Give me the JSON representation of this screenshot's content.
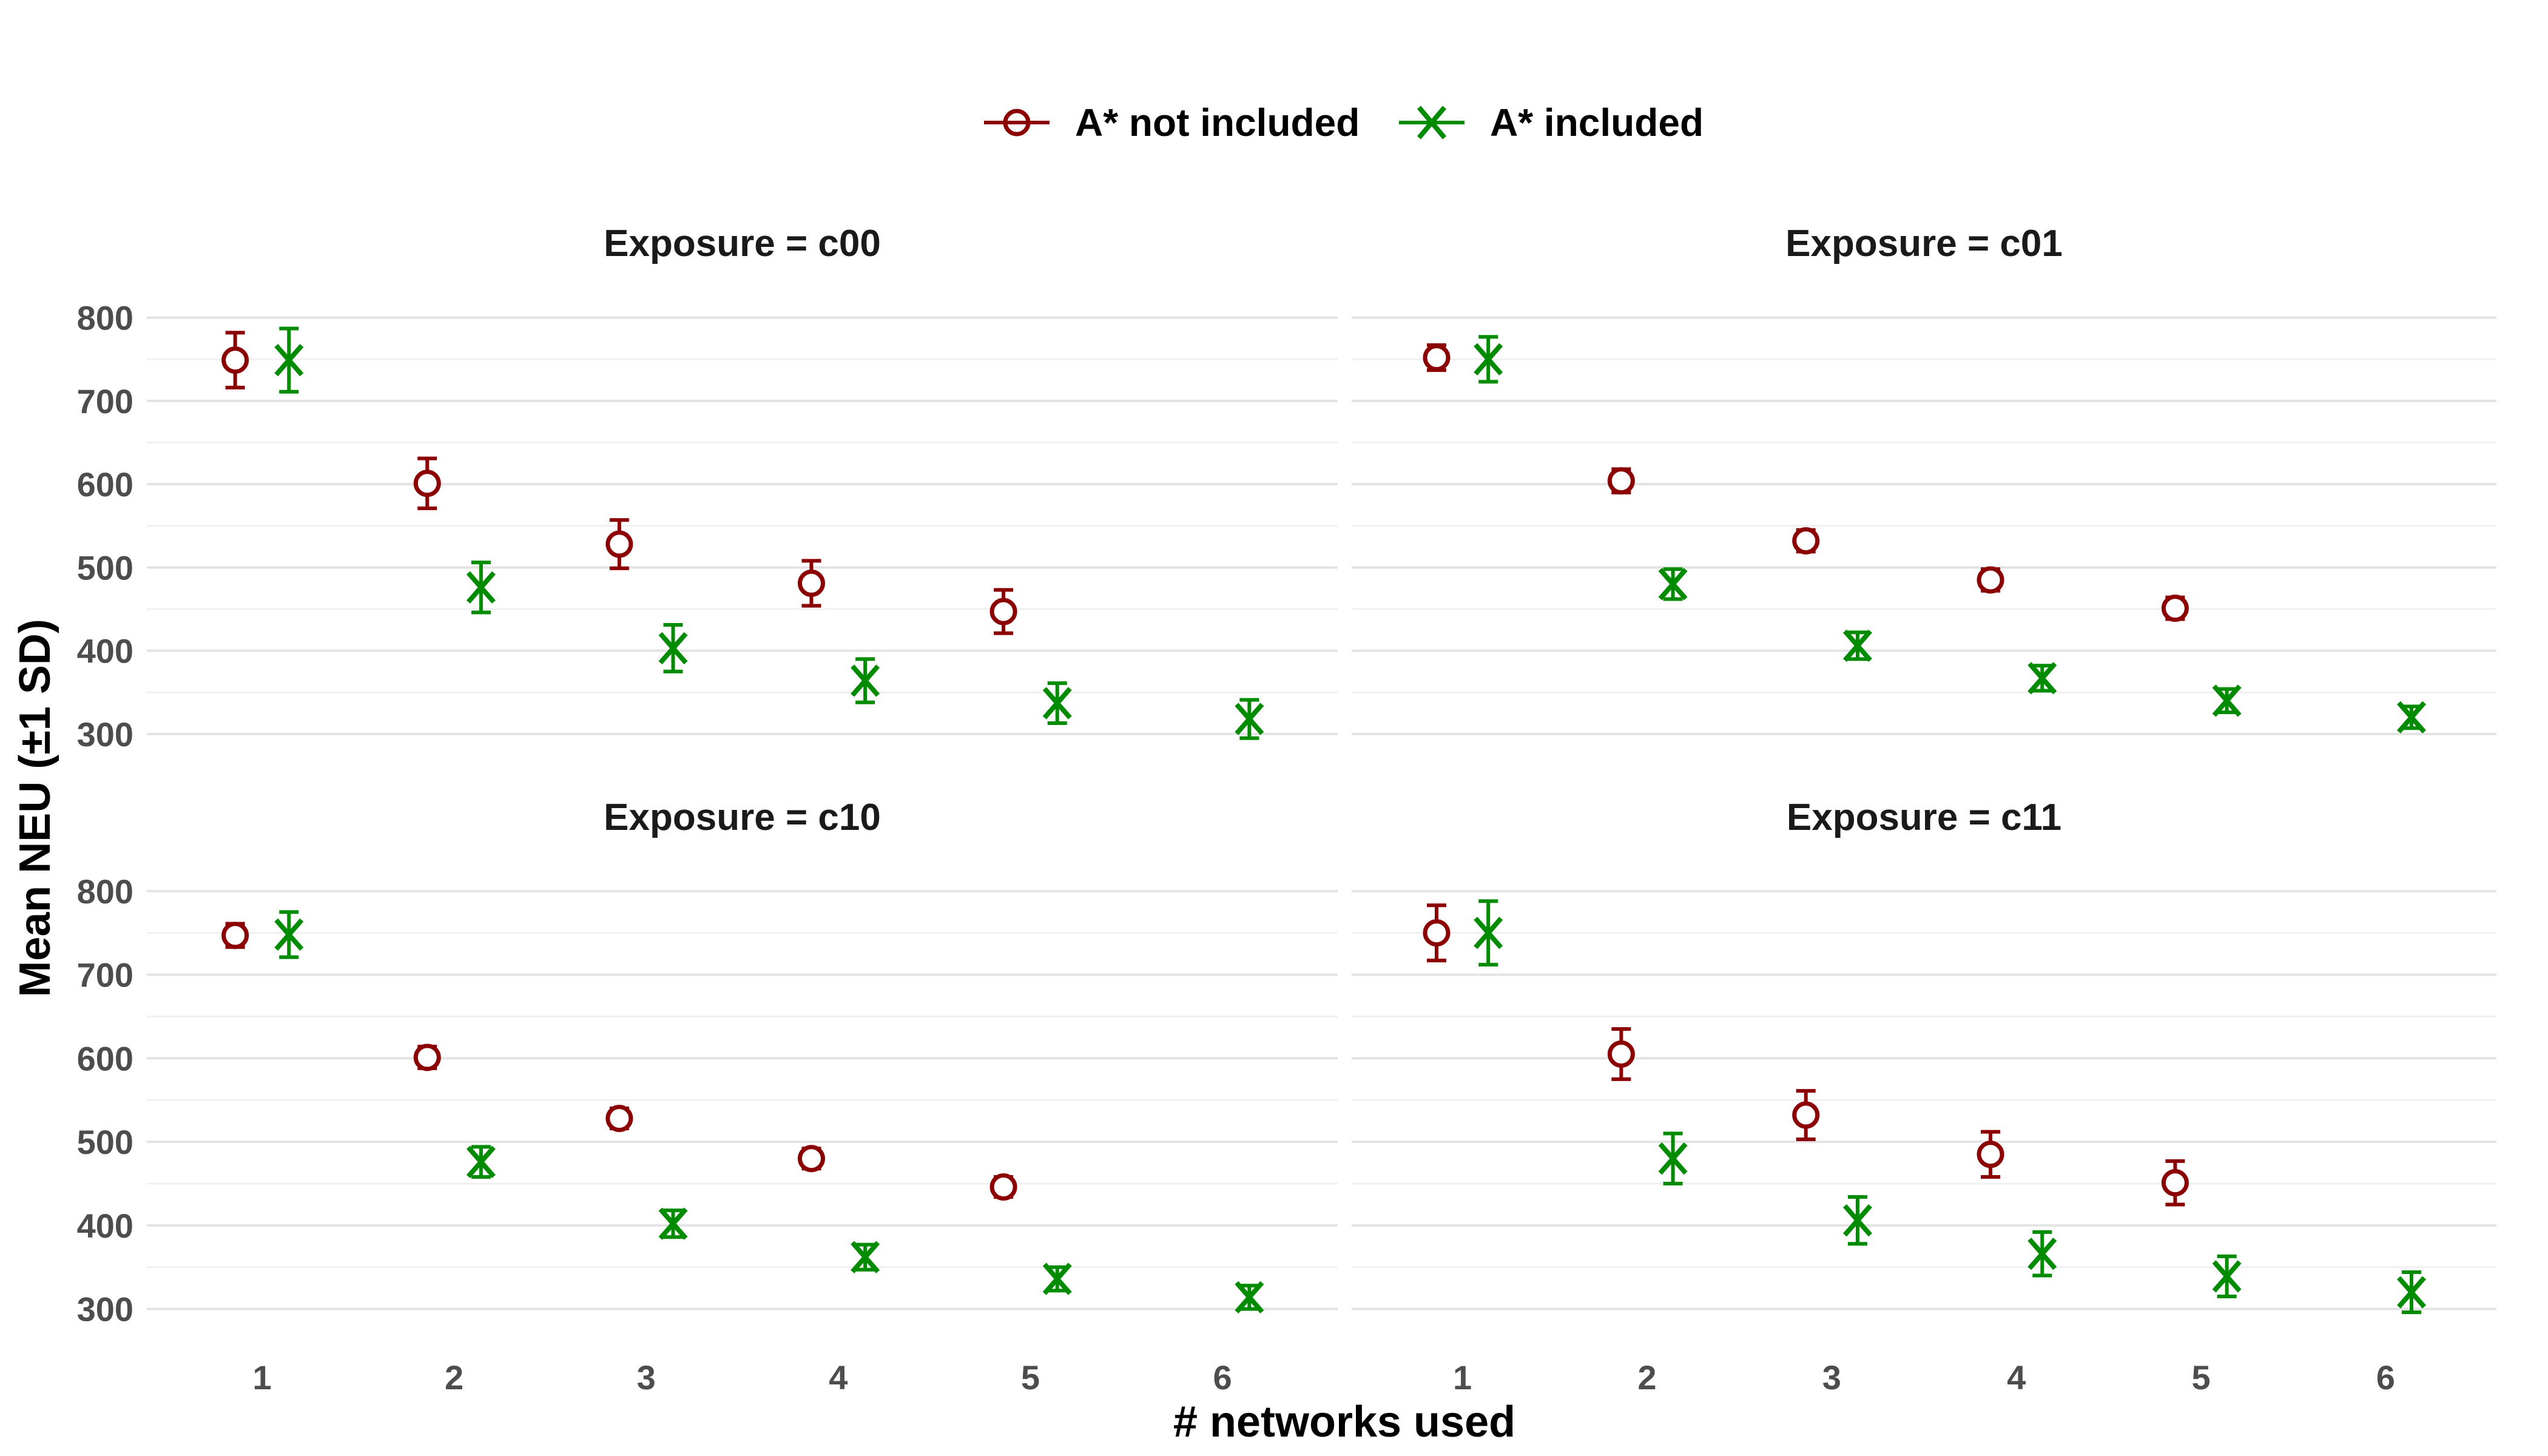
{
  "colors": {
    "not_included": "#8B0000",
    "included": "#008B00"
  },
  "legend": {
    "not_included": "A* not included",
    "included": "A* included"
  },
  "chart_data": {
    "type": "scatter",
    "subtype": "point-with-errorbars, faceted 2x2",
    "xlabel": "# networks used",
    "ylabel": "Mean NEU (±1 SD)",
    "x_ticks": [
      1,
      2,
      3,
      4,
      5,
      6
    ],
    "y_ticks": [
      300,
      400,
      500,
      600,
      700,
      800
    ],
    "xlim": [
      0.4,
      6.6
    ],
    "ylim": [
      262,
      850
    ],
    "legend_position": "top",
    "series_names": [
      "A* not included",
      "A* included"
    ],
    "panels": [
      {
        "title": "Exposure = c00",
        "series": [
          {
            "name": "A* not included",
            "x": [
              1,
              2,
              3,
              4,
              5
            ],
            "y": [
              749,
              601,
              528,
              481,
              447
            ],
            "sd": [
              33,
              30,
              29,
              27,
              26
            ]
          },
          {
            "name": "A* included",
            "x": [
              1,
              2,
              3,
              4,
              5,
              6
            ],
            "y": [
              749,
              476,
              403,
              364,
              337,
              318
            ],
            "sd": [
              38,
              30,
              28,
              26,
              24,
              23
            ]
          }
        ]
      },
      {
        "title": "Exposure = c01",
        "series": [
          {
            "name": "A* not included",
            "x": [
              1,
              2,
              3,
              4,
              5
            ],
            "y": [
              752,
              604,
              532,
              485,
              451
            ],
            "sd": [
              15,
              14,
              13,
              13,
              13
            ]
          },
          {
            "name": "A* included",
            "x": [
              1,
              2,
              3,
              4,
              5,
              6
            ],
            "y": [
              750,
              480,
              406,
              367,
              340,
              320
            ],
            "sd": [
              27,
              18,
              16,
              15,
              14,
              13
            ]
          }
        ]
      },
      {
        "title": "Exposure = c10",
        "series": [
          {
            "name": "A* not included",
            "x": [
              1,
              2,
              3,
              4,
              5
            ],
            "y": [
              747,
              601,
              528,
              480,
              446
            ],
            "sd": [
              14,
              13,
              12,
              12,
              12
            ]
          },
          {
            "name": "A* included",
            "x": [
              1,
              2,
              3,
              4,
              5,
              6
            ],
            "y": [
              748,
              476,
              402,
              362,
              336,
              314
            ],
            "sd": [
              27,
              18,
              16,
              15,
              14,
              14
            ]
          }
        ]
      },
      {
        "title": "Exposure = c11",
        "series": [
          {
            "name": "A* not included",
            "x": [
              1,
              2,
              3,
              4,
              5
            ],
            "y": [
              750,
              605,
              532,
              485,
              451
            ],
            "sd": [
              33,
              30,
              29,
              27,
              26
            ]
          },
          {
            "name": "A* included",
            "x": [
              1,
              2,
              3,
              4,
              5,
              6
            ],
            "y": [
              750,
              480,
              406,
              366,
              339,
              320
            ],
            "sd": [
              38,
              30,
              28,
              26,
              24,
              24
            ]
          }
        ]
      }
    ]
  }
}
